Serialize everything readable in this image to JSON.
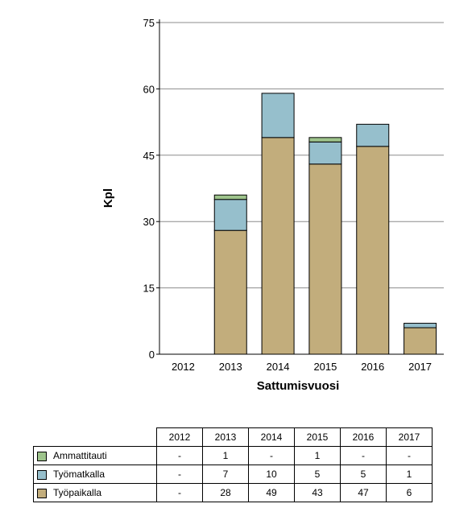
{
  "chart_data": {
    "type": "bar",
    "stacked": true,
    "title": "",
    "xlabel": "Sattumisvuosi",
    "ylabel": "Kpl",
    "ylim": [
      0,
      75
    ],
    "yticks": [
      0,
      15,
      30,
      45,
      60,
      75
    ],
    "grid": true,
    "categories": [
      "2012",
      "2013",
      "2014",
      "2015",
      "2016",
      "2017"
    ],
    "series": [
      {
        "name": "Työpaikalla",
        "color": "#c2ad7c",
        "values": [
          0,
          28,
          49,
          43,
          47,
          6
        ]
      },
      {
        "name": "Työmatkalla",
        "color": "#96bfcc",
        "values": [
          0,
          7,
          10,
          5,
          5,
          1
        ]
      },
      {
        "name": "Ammattitauti",
        "color": "#9ec48c",
        "values": [
          0,
          1,
          0,
          1,
          0,
          0
        ]
      }
    ]
  },
  "table": {
    "headers": [
      "2012",
      "2013",
      "2014",
      "2015",
      "2016",
      "2017"
    ],
    "rows": [
      {
        "label": "Ammattitauti",
        "color": "#9ec48c",
        "cells": [
          "-",
          "1",
          "-",
          "1",
          "-",
          "-"
        ]
      },
      {
        "label": "Työmatkalla",
        "color": "#96bfcc",
        "cells": [
          "-",
          "7",
          "10",
          "5",
          "5",
          "1"
        ]
      },
      {
        "label": "Työpaikalla",
        "color": "#c2ad7c",
        "cells": [
          "-",
          "28",
          "49",
          "43",
          "47",
          "6"
        ]
      }
    ]
  }
}
